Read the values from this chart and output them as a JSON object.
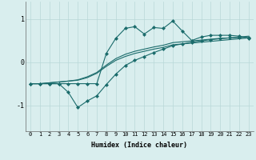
{
  "title": "",
  "xlabel": "Humidex (Indice chaleur)",
  "bg_color": "#d9eeee",
  "line_color": "#1a6b6b",
  "grid_color": "#b8d8d8",
  "xlim": [
    -0.5,
    23.5
  ],
  "ylim": [
    -1.6,
    1.4
  ],
  "x": [
    0,
    1,
    2,
    3,
    4,
    5,
    6,
    7,
    8,
    9,
    10,
    11,
    12,
    13,
    14,
    15,
    16,
    17,
    18,
    19,
    20,
    21,
    22,
    23
  ],
  "y_high": [
    -0.5,
    -0.5,
    -0.5,
    -0.5,
    -0.5,
    -0.5,
    -0.5,
    -0.5,
    0.2,
    0.55,
    0.78,
    0.82,
    0.65,
    0.8,
    0.78,
    0.95,
    0.72,
    0.5,
    0.58,
    0.62,
    0.62,
    0.62,
    0.6,
    0.55
  ],
  "y_mid1": [
    -0.5,
    -0.5,
    -0.48,
    -0.46,
    -0.44,
    -0.42,
    -0.36,
    -0.26,
    -0.1,
    0.04,
    0.13,
    0.2,
    0.25,
    0.3,
    0.34,
    0.4,
    0.42,
    0.44,
    0.46,
    0.48,
    0.5,
    0.52,
    0.54,
    0.56
  ],
  "y_mid2": [
    -0.5,
    -0.5,
    -0.48,
    -0.46,
    -0.44,
    -0.41,
    -0.34,
    -0.24,
    -0.07,
    0.08,
    0.18,
    0.25,
    0.3,
    0.35,
    0.39,
    0.45,
    0.47,
    0.49,
    0.51,
    0.53,
    0.55,
    0.56,
    0.58,
    0.6
  ],
  "y_low": [
    -0.5,
    -0.5,
    -0.5,
    -0.5,
    -0.7,
    -1.05,
    -0.9,
    -0.78,
    -0.52,
    -0.28,
    -0.08,
    0.04,
    0.13,
    0.22,
    0.3,
    0.38,
    0.42,
    0.46,
    0.49,
    0.52,
    0.54,
    0.56,
    0.57,
    0.57
  ],
  "yticks": [
    -1,
    0,
    1
  ],
  "ytick_labels": [
    "-1",
    "0",
    "1"
  ],
  "xticks": [
    0,
    1,
    2,
    3,
    4,
    5,
    6,
    7,
    8,
    9,
    10,
    11,
    12,
    13,
    14,
    15,
    16,
    17,
    18,
    19,
    20,
    21,
    22,
    23
  ],
  "marker": "D",
  "markersize": 2.0,
  "linewidth": 0.8
}
